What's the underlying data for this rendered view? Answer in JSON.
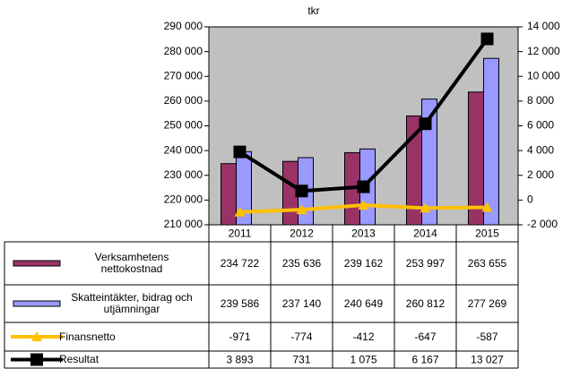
{
  "chart_data": {
    "type": "bar",
    "title": "tkr",
    "categories": [
      "2011",
      "2012",
      "2013",
      "2014",
      "2015"
    ],
    "ylim": [
      210000,
      290000
    ],
    "yticks": [
      {
        "value": 210000,
        "label": "210 000"
      },
      {
        "value": 220000,
        "label": "220 000"
      },
      {
        "value": 230000,
        "label": "230 000"
      },
      {
        "value": 240000,
        "label": "240 000"
      },
      {
        "value": 250000,
        "label": "250 000"
      },
      {
        "value": 260000,
        "label": "260 000"
      },
      {
        "value": 270000,
        "label": "270 000"
      },
      {
        "value": 280000,
        "label": "280 000"
      },
      {
        "value": 290000,
        "label": "290 000"
      }
    ],
    "y2lim": [
      -2000,
      14000
    ],
    "y2ticks": [
      {
        "value": -2000,
        "label": "-2 000"
      },
      0,
      {
        "value": 2000,
        "label": "2 000"
      },
      {
        "value": 4000,
        "label": "4 000"
      },
      {
        "value": 6000,
        "label": "6 000"
      },
      {
        "value": 8000,
        "label": "8 000"
      },
      {
        "value": 10000,
        "label": "10 000"
      },
      {
        "value": 12000,
        "label": "12 000"
      },
      {
        "value": 14000,
        "label": "14 000"
      }
    ],
    "series": [
      {
        "name": "Verksamhetens nettokostnad",
        "type": "bar",
        "color": "#993366",
        "values": [
          234722,
          235636,
          239162,
          253997,
          263655
        ],
        "value_labels": [
          "234 722",
          "235 636",
          "239 162",
          "253 997",
          "263 655"
        ]
      },
      {
        "name": "Skatteintäkter, bidrag och utjämningar",
        "type": "bar",
        "color": "#9999ff",
        "values": [
          239586,
          237140,
          240649,
          260812,
          277269
        ],
        "value_labels": [
          "239 586",
          "237 140",
          "240 649",
          "260 812",
          "277 269"
        ]
      },
      {
        "name": "Finansnetto",
        "type": "line",
        "axis": "y2",
        "color": "#ffc000",
        "marker": "triangle",
        "values": [
          -971,
          -774,
          -412,
          -647,
          -587
        ]
      },
      {
        "name": "Resultat",
        "type": "line",
        "axis": "y2",
        "color": "#000000",
        "marker": "square",
        "values": [
          3893,
          731,
          1075,
          6167,
          13027
        ],
        "value_labels": [
          "3 893",
          "731",
          "1 075",
          "6 167",
          "13 027"
        ]
      }
    ],
    "data_table": true
  }
}
